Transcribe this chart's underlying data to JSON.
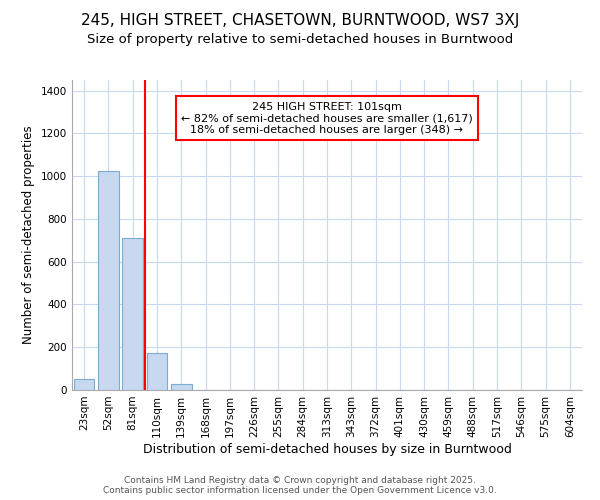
{
  "title1": "245, HIGH STREET, CHASETOWN, BURNTWOOD, WS7 3XJ",
  "title2": "Size of property relative to semi-detached houses in Burntwood",
  "xlabel": "Distribution of semi-detached houses by size in Burntwood",
  "ylabel": "Number of semi-detached properties",
  "categories": [
    "23sqm",
    "52sqm",
    "81sqm",
    "110sqm",
    "139sqm",
    "168sqm",
    "197sqm",
    "226sqm",
    "255sqm",
    "284sqm",
    "313sqm",
    "343sqm",
    "372sqm",
    "401sqm",
    "430sqm",
    "459sqm",
    "488sqm",
    "517sqm",
    "546sqm",
    "575sqm",
    "604sqm"
  ],
  "values": [
    50,
    1025,
    710,
    175,
    30,
    0,
    0,
    0,
    0,
    0,
    0,
    0,
    0,
    0,
    0,
    0,
    0,
    0,
    0,
    0,
    0
  ],
  "bar_color": "#c6d9f0",
  "bar_edge_color": "#7aadcf",
  "vline_x": 2.5,
  "vline_color": "red",
  "annotation_text": "245 HIGH STREET: 101sqm\n← 82% of semi-detached houses are smaller (1,617)\n18% of semi-detached houses are larger (348) →",
  "annotation_box_color": "white",
  "annotation_box_edge": "red",
  "ylim": [
    0,
    1450
  ],
  "yticks": [
    0,
    200,
    400,
    600,
    800,
    1000,
    1200,
    1400
  ],
  "fig_bg": "#ffffff",
  "plot_bg": "#ffffff",
  "grid_color": "#c8d8f0",
  "footer": "Contains HM Land Registry data © Crown copyright and database right 2025.\nContains public sector information licensed under the Open Government Licence v3.0.",
  "title1_fontsize": 11,
  "title2_fontsize": 9.5,
  "xlabel_fontsize": 9,
  "ylabel_fontsize": 8.5,
  "tick_fontsize": 7.5,
  "footer_fontsize": 6.5,
  "annot_fontsize": 8
}
